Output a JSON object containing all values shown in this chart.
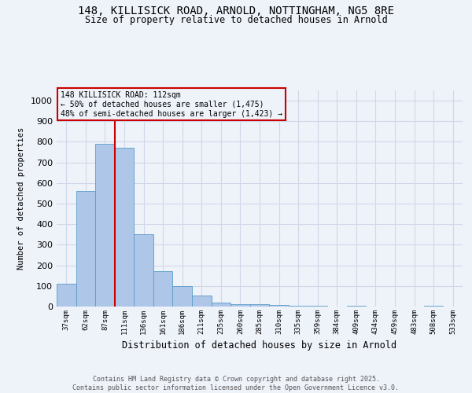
{
  "title_line1": "148, KILLISICK ROAD, ARNOLD, NOTTINGHAM, NG5 8RE",
  "title_line2": "Size of property relative to detached houses in Arnold",
  "xlabel": "Distribution of detached houses by size in Arnold",
  "ylabel": "Number of detached properties",
  "categories": [
    "37sqm",
    "62sqm",
    "87sqm",
    "111sqm",
    "136sqm",
    "161sqm",
    "186sqm",
    "211sqm",
    "235sqm",
    "260sqm",
    "285sqm",
    "310sqm",
    "335sqm",
    "359sqm",
    "384sqm",
    "409sqm",
    "434sqm",
    "459sqm",
    "483sqm",
    "508sqm",
    "533sqm"
  ],
  "values": [
    110,
    560,
    790,
    770,
    350,
    170,
    100,
    55,
    18,
    13,
    10,
    8,
    5,
    3,
    0,
    5,
    0,
    0,
    0,
    5,
    0
  ],
  "bar_color": "#aec6e8",
  "bar_edge_color": "#5a9bc9",
  "grid_color": "#d0d8e8",
  "background_color": "#eef2f9",
  "red_line_color": "#cc0000",
  "annotation_text": "148 KILLISICK ROAD: 112sqm\n← 50% of detached houses are smaller (1,475)\n48% of semi-detached houses are larger (1,423) →",
  "annotation_box_color": "#cc0000",
  "annotation_text_color": "#000000",
  "footer_text": "Contains HM Land Registry data © Crown copyright and database right 2025.\nContains public sector information licensed under the Open Government Licence v3.0.",
  "ylim": [
    0,
    1050
  ],
  "yticks": [
    0,
    100,
    200,
    300,
    400,
    500,
    600,
    700,
    800,
    900,
    1000
  ]
}
